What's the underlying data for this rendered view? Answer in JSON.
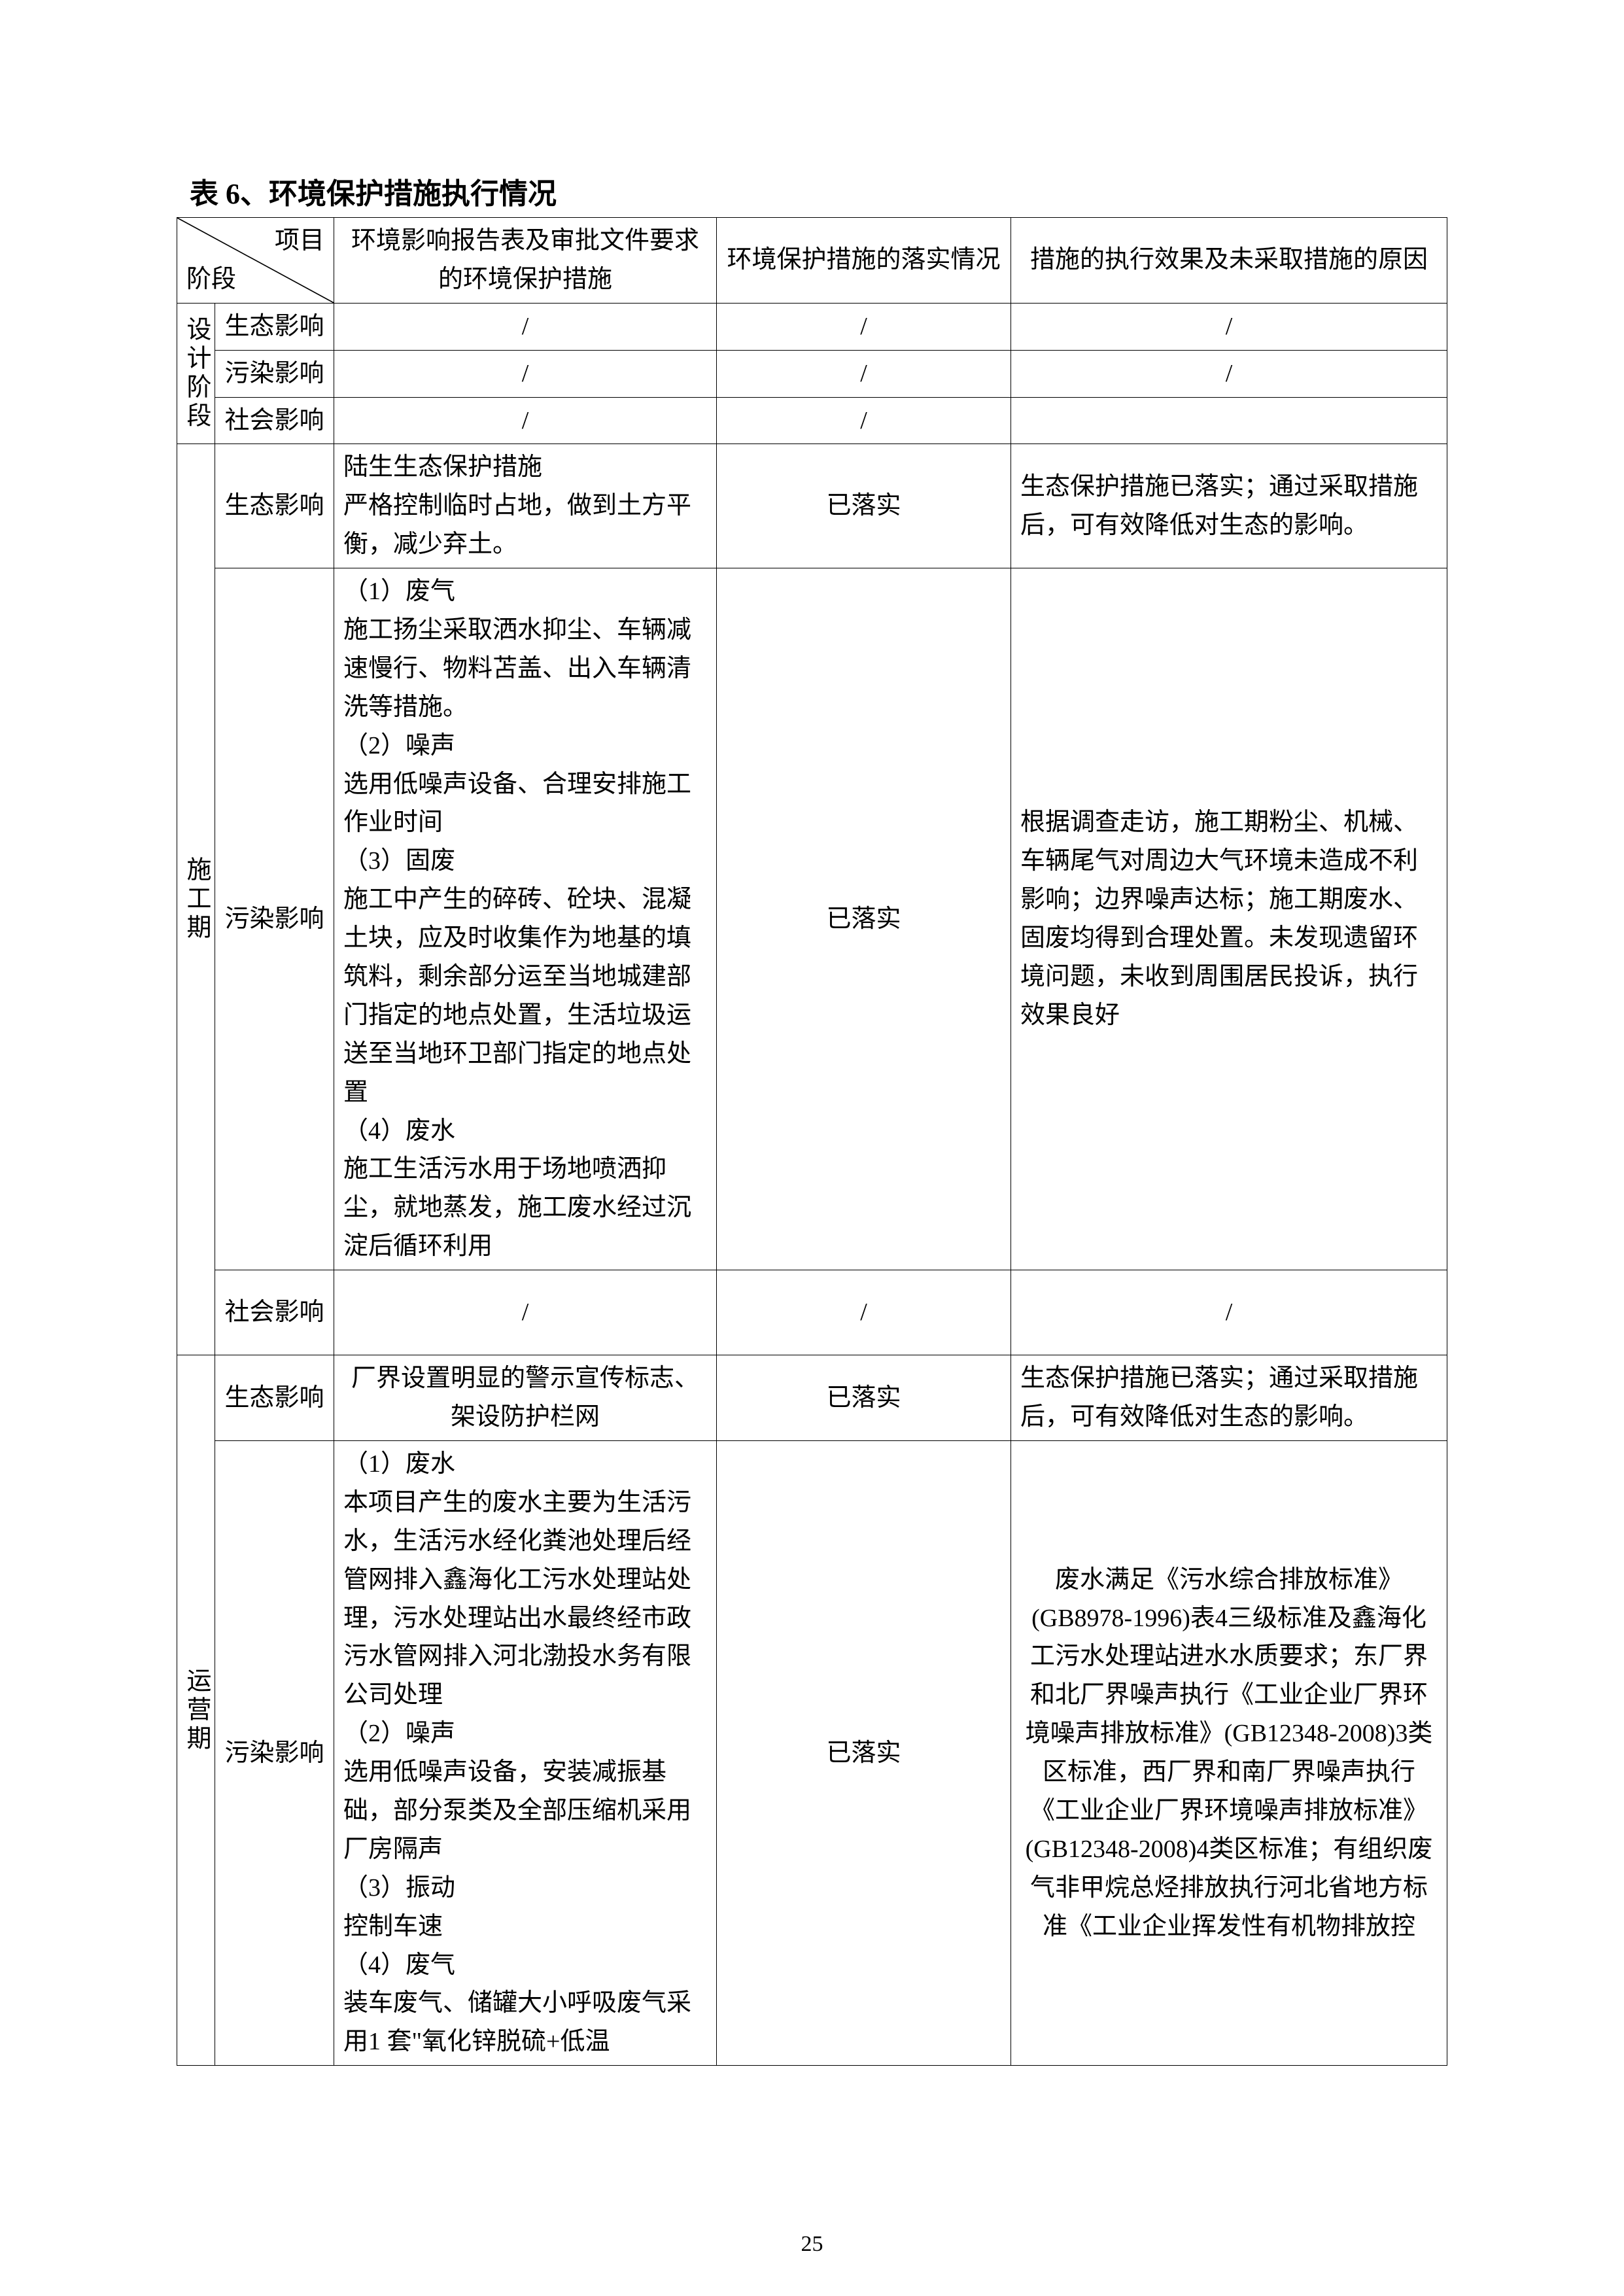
{
  "title": "表 6、环境保护措施执行情况",
  "pageNumber": "25",
  "header": {
    "diagTop": "项目",
    "diagBottom": "阶段",
    "col2": "环境影响报告表及审批文件要求的环境保护措施",
    "col3": "环境保护措施的落实情况",
    "col4": "措施的执行效果及未采取措施的原因"
  },
  "phases": {
    "design": "设计阶段",
    "construction": "施工期",
    "operation": "运营期"
  },
  "items": {
    "eco": "生态影响",
    "pollution": "污染影响",
    "social": "社会影响"
  },
  "slash": "/",
  "status": {
    "done": "已落实"
  },
  "design": {
    "eco": {
      "measure": "/",
      "status": "/",
      "effect": "/"
    },
    "pollution": {
      "measure": "/",
      "status": "/",
      "effect": "/"
    },
    "social": {
      "measure": "/",
      "status": "/",
      "effect": ""
    }
  },
  "construction": {
    "eco": {
      "measure": "陆生生态保护措施\n严格控制临时占地，做到土方平衡，减少弃土。",
      "status": "已落实",
      "effect": "生态保护措施已落实；通过采取措施后，可有效降低对生态的影响。"
    },
    "pollution": {
      "measure": "（1）废气\n施工扬尘采取洒水抑尘、车辆减速慢行、物料苫盖、出入车辆清洗等措施。\n（2）噪声\n选用低噪声设备、合理安排施工作业时间\n（3）固废\n施工中产生的碎砖、砼块、混凝土块，应及时收集作为地基的填筑料，剩余部分运至当地城建部门指定的地点处置，生活垃圾运送至当地环卫部门指定的地点处置\n（4）废水\n施工生活污水用于场地喷洒抑尘，就地蒸发，施工废水经过沉淀后循环利用",
      "status": "已落实",
      "effect": "根据调查走访，施工期粉尘、机械、车辆尾气对周边大气环境未造成不利影响；边界噪声达标；施工期废水、固废均得到合理处置。未发现遗留环境问题，未收到周围居民投诉，执行效果良好"
    },
    "social": {
      "measure": "/",
      "status": "/",
      "effect": "/"
    }
  },
  "operation": {
    "eco": {
      "measure": "厂界设置明显的警示宣传标志、架设防护栏网",
      "status": "已落实",
      "effect": "生态保护措施已落实；通过采取措施后，可有效降低对生态的影响。"
    },
    "pollution": {
      "measure": "（1）废水\n本项目产生的废水主要为生活污水，生活污水经化粪池处理后经管网排入鑫海化工污水处理站处理，污水处理站出水最终经市政污水管网排入河北渤投水务有限公司处理\n（2）噪声\n选用低噪声设备，安装减振基础，部分泵类及全部压缩机采用厂房隔声\n（3）振动\n控制车速\n（4）废气\n装车废气、储罐大小呼吸废气采用1 套\"氧化锌脱硫+低温",
      "status": "已落实",
      "effect": "废水满足《污水综合排放标准》(GB8978-1996)表4三级标准及鑫海化工污水处理站进水水质要求；东厂界和北厂界噪声执行《工业企业厂界环境噪声排放标准》(GB12348-2008)3类区标准，西厂界和南厂界噪声执行《工业企业厂界环境噪声排放标准》(GB12348-2008)4类区标准；有组织废气非甲烷总烃排放执行河北省地方标准《工业企业挥发性有机物排放控"
    }
  }
}
